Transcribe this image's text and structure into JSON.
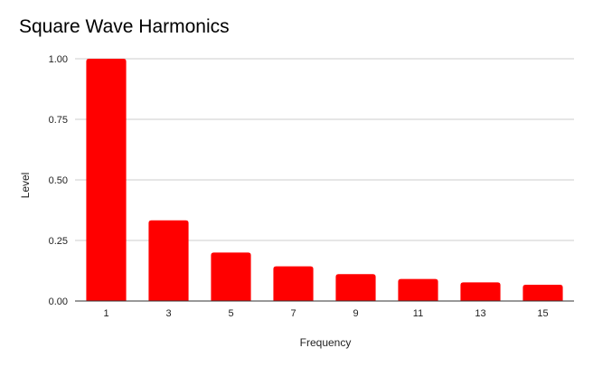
{
  "chart_data": {
    "type": "bar",
    "title": "Square Wave Harmonics",
    "xlabel": "Frequency",
    "ylabel": "Level",
    "categories": [
      "1",
      "3",
      "5",
      "7",
      "9",
      "11",
      "13",
      "15"
    ],
    "series": [
      {
        "values": [
          1.0,
          0.333,
          0.2,
          0.143,
          0.111,
          0.091,
          0.077,
          0.067
        ]
      }
    ],
    "ylim": [
      0,
      1.0
    ],
    "yticks": [
      "0.00",
      "0.25",
      "0.50",
      "0.75",
      "1.00"
    ],
    "ytick_values": [
      0,
      0.25,
      0.5,
      0.75,
      1.0
    ],
    "grid": true,
    "legend": "none",
    "bar_color": "#ff0000",
    "grid_color": "#cccccc",
    "axis_color": "#333333"
  }
}
